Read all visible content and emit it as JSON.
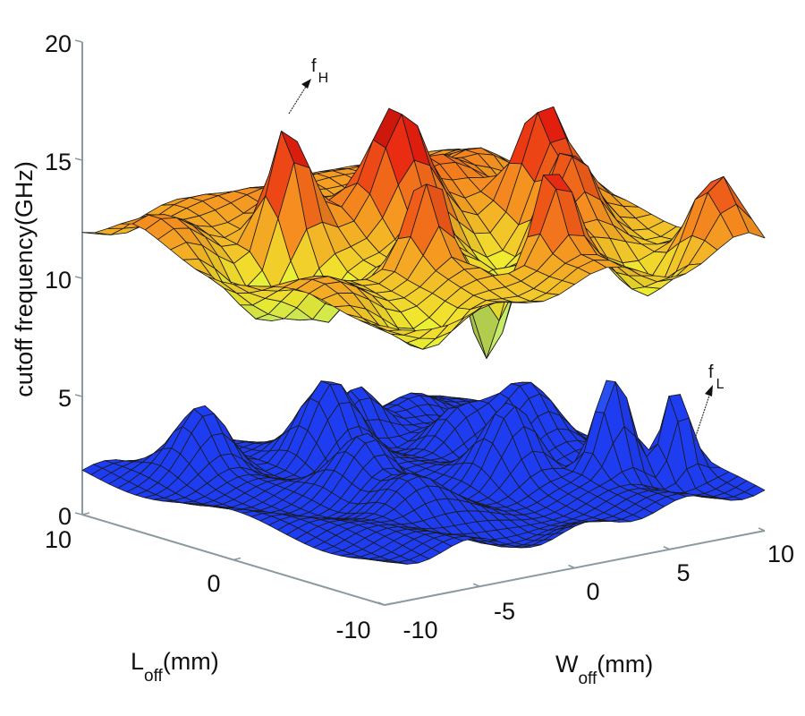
{
  "chart_data": {
    "type": "surface3d",
    "title": "",
    "zlabel": "cutoff frequency(GHz)",
    "xlabel": {
      "main": "L",
      "sub": "off",
      "unit": "(mm)"
    },
    "ylabel": {
      "main": "W",
      "sub": "off",
      "unit": "(mm)"
    },
    "zlim": [
      0,
      20
    ],
    "xlim": [
      -10,
      10
    ],
    "ylim": [
      -10,
      10
    ],
    "z_ticks": [
      "20",
      "15",
      "10",
      "5",
      "0"
    ],
    "z_tick_values": [
      20,
      15,
      10,
      5,
      0
    ],
    "x_ticks": [
      "10",
      "0",
      "-10"
    ],
    "x_tick_values": [
      10,
      0,
      -10
    ],
    "y_ticks": [
      "-10",
      "-5",
      "0",
      "5",
      "10"
    ],
    "y_tick_values": [
      -10,
      -5,
      0,
      5,
      10
    ],
    "grid": false,
    "series": [
      {
        "name": "f_H",
        "label_main": "f",
        "label_sub": "H",
        "colormap": "autumn-yellow-green",
        "z_range_approx": [
          5.5,
          18.5
        ],
        "mean_approx": 12.5
      },
      {
        "name": "f_L",
        "label_main": "f",
        "label_sub": "L",
        "colormap": "blue",
        "z_range_approx": [
          1.0,
          8.0
        ],
        "mean_approx": 3.0
      }
    ],
    "colors": {
      "high_low": "#7fe6c0",
      "high_mid": "#f0f030",
      "high_upper": "#f59020",
      "high_top": "#e82010",
      "high_peak": "#7a0000",
      "low_base": "#1e3cf0",
      "low_peak": "#6ec8f5"
    }
  }
}
